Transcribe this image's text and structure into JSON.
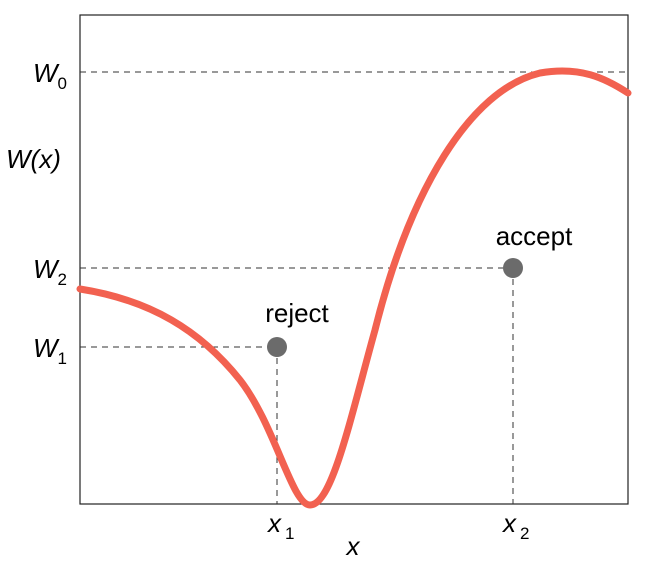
{
  "axes": {
    "xlabel": "x",
    "ylabel": "W(x)"
  },
  "y_ticks": {
    "w0": {
      "base": "W",
      "sub": "0"
    },
    "w2": {
      "base": "W",
      "sub": "2"
    },
    "w1": {
      "base": "W",
      "sub": "1"
    }
  },
  "x_ticks": {
    "x1": {
      "base": "x",
      "sub": "1"
    },
    "x2": {
      "base": "x",
      "sub": "2"
    }
  },
  "points": {
    "reject": {
      "label": "reject"
    },
    "accept": {
      "label": "accept"
    }
  },
  "colors": {
    "curve": "#f26150",
    "point": "#6b6b6b",
    "frame": "#222222",
    "guide": "#333333"
  }
}
